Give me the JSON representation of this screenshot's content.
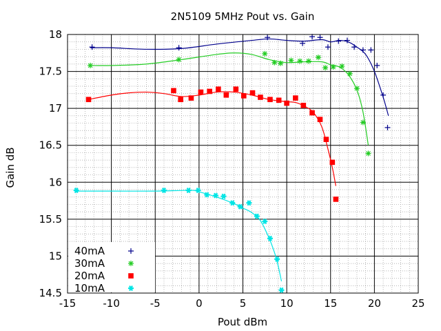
{
  "chart_data": {
    "type": "scatter",
    "title": "2N5109 5MHz Pout vs. Gain",
    "xlabel": "Pout dBm",
    "ylabel": "Gain dB",
    "xlim": [
      -15,
      25
    ],
    "ylim": [
      14.5,
      18
    ],
    "xticks": [
      -15,
      -10,
      -5,
      0,
      5,
      10,
      15,
      20,
      25
    ],
    "yticks": [
      14.5,
      15,
      15.5,
      16,
      16.5,
      17,
      17.5,
      18
    ],
    "grid": true,
    "legend_position": "bottom-left",
    "series": [
      {
        "name": "40mA",
        "color": "#00008b",
        "marker": "plus",
        "points": [
          [
            -12.2,
            17.83
          ],
          [
            -2.3,
            17.82
          ],
          [
            7.8,
            17.96
          ],
          [
            11.8,
            17.88
          ],
          [
            12.9,
            17.97
          ],
          [
            13.8,
            17.96
          ],
          [
            14.7,
            17.83
          ],
          [
            15.9,
            17.91
          ],
          [
            16.9,
            17.92
          ],
          [
            17.7,
            17.83
          ],
          [
            18.7,
            17.79
          ],
          [
            19.6,
            17.79
          ],
          [
            20.3,
            17.58
          ],
          [
            21.0,
            17.18
          ],
          [
            21.5,
            16.74
          ]
        ],
        "curve": [
          [
            -12.4,
            17.82
          ],
          [
            -10,
            17.82
          ],
          [
            -6,
            17.8
          ],
          [
            -2,
            17.81
          ],
          [
            2,
            17.87
          ],
          [
            6,
            17.92
          ],
          [
            8,
            17.94
          ],
          [
            10,
            17.92
          ],
          [
            12,
            17.91
          ],
          [
            14,
            17.93
          ],
          [
            15,
            17.9
          ],
          [
            16,
            17.92
          ],
          [
            17,
            17.9
          ],
          [
            18,
            17.83
          ],
          [
            19,
            17.73
          ],
          [
            20,
            17.5
          ],
          [
            21,
            17.15
          ],
          [
            21.6,
            16.9
          ]
        ]
      },
      {
        "name": "30mA",
        "color": "#22cc22",
        "marker": "star",
        "points": [
          [
            -12.4,
            17.58
          ],
          [
            -2.3,
            17.66
          ],
          [
            7.5,
            17.74
          ],
          [
            8.6,
            17.62
          ],
          [
            9.3,
            17.61
          ],
          [
            10.5,
            17.65
          ],
          [
            11.5,
            17.64
          ],
          [
            12.5,
            17.64
          ],
          [
            13.6,
            17.69
          ],
          [
            14.4,
            17.55
          ],
          [
            15.3,
            17.56
          ],
          [
            16.3,
            17.57
          ],
          [
            17.2,
            17.47
          ],
          [
            18.0,
            17.27
          ],
          [
            18.7,
            16.81
          ],
          [
            19.3,
            16.39
          ]
        ],
        "curve": [
          [
            -12.4,
            17.58
          ],
          [
            -10,
            17.58
          ],
          [
            -6,
            17.6
          ],
          [
            -2,
            17.66
          ],
          [
            2,
            17.73
          ],
          [
            4,
            17.75
          ],
          [
            6,
            17.73
          ],
          [
            8,
            17.66
          ],
          [
            10,
            17.62
          ],
          [
            12,
            17.63
          ],
          [
            14,
            17.63
          ],
          [
            15,
            17.59
          ],
          [
            16,
            17.56
          ],
          [
            17,
            17.46
          ],
          [
            18,
            17.25
          ],
          [
            18.7,
            16.95
          ],
          [
            19.3,
            16.5
          ]
        ]
      },
      {
        "name": "20mA",
        "color": "#ff0000",
        "marker": "square",
        "points": [
          [
            -12.6,
            17.12
          ],
          [
            -2.9,
            17.24
          ],
          [
            -2.1,
            17.12
          ],
          [
            -0.9,
            17.14
          ],
          [
            0.2,
            17.22
          ],
          [
            1.2,
            17.23
          ],
          [
            2.2,
            17.26
          ],
          [
            3.1,
            17.18
          ],
          [
            4.2,
            17.26
          ],
          [
            5.1,
            17.17
          ],
          [
            6.1,
            17.21
          ],
          [
            7.0,
            17.15
          ],
          [
            8.1,
            17.12
          ],
          [
            9.1,
            17.11
          ],
          [
            10.0,
            17.07
          ],
          [
            11.0,
            17.14
          ],
          [
            11.9,
            17.04
          ],
          [
            12.9,
            16.94
          ],
          [
            13.8,
            16.85
          ],
          [
            14.5,
            16.58
          ],
          [
            15.2,
            16.27
          ],
          [
            15.6,
            15.77
          ]
        ],
        "curve": [
          [
            -12.6,
            17.12
          ],
          [
            -10,
            17.18
          ],
          [
            -8,
            17.21
          ],
          [
            -6,
            17.22
          ],
          [
            -4,
            17.2
          ],
          [
            -2,
            17.16
          ],
          [
            0,
            17.18
          ],
          [
            2,
            17.22
          ],
          [
            4,
            17.22
          ],
          [
            6,
            17.18
          ],
          [
            8,
            17.12
          ],
          [
            10,
            17.09
          ],
          [
            11,
            17.08
          ],
          [
            12,
            17.03
          ],
          [
            13,
            16.95
          ],
          [
            14,
            16.75
          ],
          [
            14.7,
            16.45
          ],
          [
            15.2,
            16.2
          ],
          [
            15.6,
            15.95
          ]
        ]
      },
      {
        "name": "10mA",
        "color": "#00e5e5",
        "marker": "asterisk",
        "points": [
          [
            -14.0,
            15.89
          ],
          [
            -4.0,
            15.89
          ],
          [
            -1.2,
            15.89
          ],
          [
            -0.1,
            15.89
          ],
          [
            0.9,
            15.83
          ],
          [
            1.9,
            15.82
          ],
          [
            2.8,
            15.81
          ],
          [
            3.8,
            15.72
          ],
          [
            4.7,
            15.67
          ],
          [
            5.7,
            15.72
          ],
          [
            6.6,
            15.54
          ],
          [
            7.5,
            15.47
          ],
          [
            8.1,
            15.24
          ],
          [
            8.9,
            14.96
          ],
          [
            9.4,
            14.54
          ]
        ],
        "curve": [
          [
            -14,
            15.88
          ],
          [
            -10,
            15.88
          ],
          [
            -5,
            15.88
          ],
          [
            -1,
            15.89
          ],
          [
            0,
            15.87
          ],
          [
            2,
            15.8
          ],
          [
            4,
            15.71
          ],
          [
            5,
            15.65
          ],
          [
            6,
            15.59
          ],
          [
            7,
            15.48
          ],
          [
            8,
            15.24
          ],
          [
            8.6,
            15.05
          ],
          [
            9.0,
            14.88
          ],
          [
            9.4,
            14.66
          ]
        ]
      }
    ]
  }
}
